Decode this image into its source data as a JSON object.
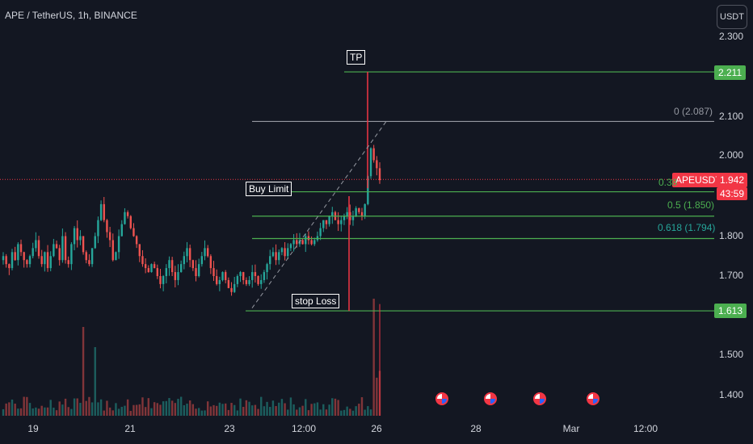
{
  "header": {
    "title": "APE / TetherUS, 1h, BINANCE",
    "currency_button": "USDT"
  },
  "price_axis": {
    "labels": [
      "2.300",
      "2.100",
      "2.000",
      "1.800",
      "1.700",
      "1.500",
      "1.400"
    ],
    "tp_badge": "2.211",
    "stop_badge": "1.613",
    "current_symbol": "APEUSDT",
    "current_price": "1.942",
    "countdown": "43:59"
  },
  "time_axis": {
    "labels": [
      "19",
      "21",
      "23",
      "12:00",
      "26",
      "28",
      "Mar",
      "12:00"
    ]
  },
  "annotations": {
    "tp": "TP",
    "buy_limit": "Buy Limit",
    "stop_loss": "stop Loss"
  },
  "fib_levels": {
    "level_0": "0 (2.087)",
    "level_0382": "0.38",
    "level_05": "0.5 (1.850)",
    "level_0618": "0.618 (1.794)"
  },
  "colors": {
    "up": "#26a69a",
    "down": "#ef5350",
    "level_green": "#4caf50",
    "level_gray": "#9598a1",
    "marker_red": "#f23645",
    "background": "#131722"
  },
  "icons": [
    "us-flag-icon",
    "us-flag-icon",
    "us-flag-icon",
    "us-flag-icon"
  ],
  "chart_data": {
    "type": "candlestick",
    "symbol": "APEUSDT",
    "interval": "1h",
    "ylim": [
      1.35,
      2.33
    ],
    "y_ticks": [
      2.3,
      2.1,
      2.0,
      1.8,
      1.7,
      1.5,
      1.4
    ],
    "x_ticks": [
      "19",
      "21",
      "23",
      "12:00",
      "26",
      "28",
      "Mar",
      "12:00"
    ],
    "levels": [
      {
        "label": "TP",
        "value": 2.211
      },
      {
        "label": "0 (2.087)",
        "value": 2.087
      },
      {
        "label": "0.38",
        "value": 1.911
      },
      {
        "label": "0.5 (1.850)",
        "value": 1.85
      },
      {
        "label": "0.618 (1.794)",
        "value": 1.794
      },
      {
        "label": "stop Loss",
        "value": 1.613
      }
    ],
    "close_path": [
      1.75,
      1.73,
      1.72,
      1.76,
      1.74,
      1.78,
      1.76,
      1.74,
      1.73,
      1.75,
      1.77,
      1.79,
      1.75,
      1.73,
      1.76,
      1.72,
      1.75,
      1.78,
      1.77,
      1.74,
      1.8,
      1.74,
      1.73,
      1.78,
      1.82,
      1.79,
      1.8,
      1.76,
      1.74,
      1.73,
      1.77,
      1.8,
      1.84,
      1.88,
      1.84,
      1.81,
      1.79,
      1.74,
      1.76,
      1.8,
      1.83,
      1.86,
      1.85,
      1.82,
      1.8,
      1.78,
      1.75,
      1.73,
      1.72,
      1.71,
      1.73,
      1.72,
      1.7,
      1.68,
      1.7,
      1.72,
      1.74,
      1.71,
      1.69,
      1.71,
      1.73,
      1.75,
      1.77,
      1.74,
      1.72,
      1.7,
      1.73,
      1.75,
      1.77,
      1.75,
      1.72,
      1.7,
      1.68,
      1.69,
      1.71,
      1.69,
      1.67,
      1.66,
      1.68,
      1.7,
      1.71,
      1.69,
      1.68,
      1.69,
      1.71,
      1.7,
      1.68,
      1.69,
      1.71,
      1.73,
      1.75,
      1.76,
      1.74,
      1.76,
      1.77,
      1.75,
      1.77,
      1.78,
      1.79,
      1.78,
      1.79,
      1.78,
      1.8,
      1.79,
      1.78,
      1.79,
      1.8,
      1.82,
      1.84,
      1.83,
      1.85,
      1.86,
      1.84,
      1.83,
      1.84,
      1.85,
      1.86,
      1.84,
      1.85,
      1.87,
      1.86,
      1.85,
      1.88,
      1.95,
      2.02,
      1.99,
      1.97,
      1.94
    ]
  }
}
